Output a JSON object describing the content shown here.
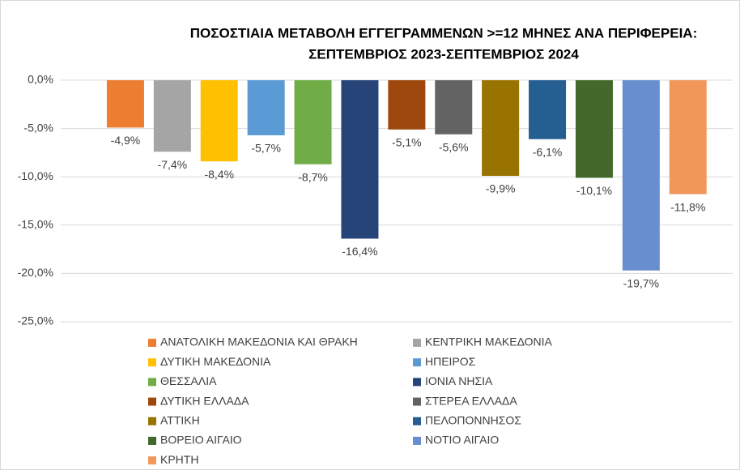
{
  "chart_data": {
    "type": "bar",
    "title": [
      "ΠΟΣΟΣΤΙΑΙΑ ΜΕΤΑΒΟΛΗ ΕΓΓΕΓΡΑΜΜΕΝΩΝ >=12 ΜΗΝΕΣ ΑΝΑ ΠΕΡΙΦΕΡΕΙΑ:",
      "ΣΕΠΤΕΜΒΡΙΟΣ 2023-ΣΕΠΤΕΜΒΡΙΟΣ 2024"
    ],
    "series": [
      {
        "name": "ΑΝΑΤΟΛΙΚΗ ΜΑΚΕΔΟΝΙΑ ΚΑΙ ΘΡΑΚΗ",
        "color": "#ed7d31",
        "values": [
          -4.9
        ],
        "value_labels": [
          "-4,9%"
        ]
      },
      {
        "name": "ΚΕΝΤΡΙΚΗ ΜΑΚΕΔΟΝΙΑ",
        "color": "#a5a5a5",
        "values": [
          -7.4
        ],
        "value_labels": [
          "-7,4%"
        ]
      },
      {
        "name": "ΔΥΤΙΚΗ ΜΑΚΕΔΟΝΙΑ",
        "color": "#ffc000",
        "values": [
          -8.4
        ],
        "value_labels": [
          "-8,4%"
        ]
      },
      {
        "name": "ΗΠΕΙΡΟΣ",
        "color": "#5b9bd5",
        "values": [
          -5.7
        ],
        "value_labels": [
          "-5,7%"
        ]
      },
      {
        "name": "ΘΕΣΣΑΛΙΑ",
        "color": "#70ad47",
        "values": [
          -8.7
        ],
        "value_labels": [
          "-8,7%"
        ]
      },
      {
        "name": "ΙΟΝΙΑ ΝΗΣΙΑ",
        "color": "#264478",
        "values": [
          -16.4
        ],
        "value_labels": [
          "-16,4%"
        ]
      },
      {
        "name": "ΔΥΤΙΚΗ ΕΛΛΑΔΑ",
        "color": "#9e480e",
        "values": [
          -5.1
        ],
        "value_labels": [
          "-5,1%"
        ]
      },
      {
        "name": "ΣΤΕΡΕΑ ΕΛΛΑΔΑ",
        "color": "#636363",
        "values": [
          -5.6
        ],
        "value_labels": [
          "-5,6%"
        ]
      },
      {
        "name": "ΑΤΤΙΚΗ",
        "color": "#997300",
        "values": [
          -9.9
        ],
        "value_labels": [
          "-9,9%"
        ]
      },
      {
        "name": "ΠΕΛΟΠΟΝΝΗΣΟΣ",
        "color": "#255e91",
        "values": [
          -6.1
        ],
        "value_labels": [
          "-6,1%"
        ]
      },
      {
        "name": "ΒΟΡΕΙΟ ΑΙΓΑΙΟ",
        "color": "#43682b",
        "values": [
          -10.1
        ],
        "value_labels": [
          "-10,1%"
        ]
      },
      {
        "name": "ΝΟΤΙΟ ΑΙΓΑΙΟ",
        "color": "#698ed0",
        "values": [
          -19.7
        ],
        "value_labels": [
          "-19,7%"
        ]
      },
      {
        "name": "ΚΡΗΤΗ",
        "color": "#f1975a",
        "values": [
          -11.8
        ],
        "value_labels": [
          "-11,8%"
        ]
      }
    ],
    "ylim": [
      -25,
      0
    ],
    "yticks": [
      {
        "value": 0,
        "label": "0,0%"
      },
      {
        "value": -5,
        "label": "-5,0%"
      },
      {
        "value": -10,
        "label": "-10,0%"
      },
      {
        "value": -15,
        "label": "-15,0%"
      },
      {
        "value": -20,
        "label": "-20,0%"
      },
      {
        "value": -25,
        "label": "-25,0%"
      }
    ],
    "grid": true
  }
}
